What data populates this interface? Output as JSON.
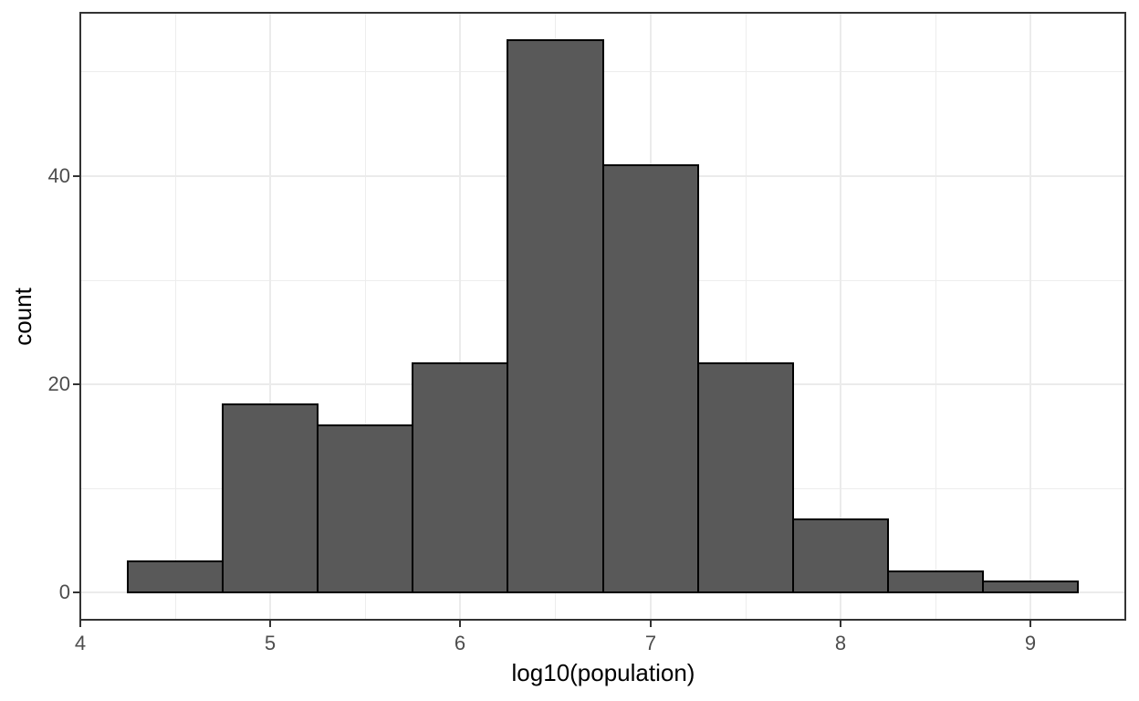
{
  "chart_data": {
    "type": "bar",
    "subtype": "histogram",
    "title": "",
    "xlabel": "log10(population)",
    "ylabel": "count",
    "bin_edges": [
      4.25,
      4.75,
      5.25,
      5.75,
      6.25,
      6.75,
      7.25,
      7.75,
      8.25,
      8.75,
      9.25
    ],
    "counts": [
      3,
      18,
      16,
      22,
      53,
      41,
      22,
      7,
      2,
      1
    ],
    "xlim": [
      4.0,
      9.5
    ],
    "ylim": [
      -2.65,
      55.65
    ],
    "x_ticks": [
      4,
      5,
      6,
      7,
      8,
      9
    ],
    "y_ticks": [
      0,
      20,
      40
    ],
    "x_minor_breaks": [
      4.5,
      5.5,
      6.5,
      7.5,
      8.5,
      9.5
    ],
    "y_minor_breaks": [
      10,
      30,
      50
    ],
    "grid": "on",
    "legend": "none",
    "colors": {
      "bar_fill": "#595959",
      "bar_stroke": "#000000",
      "panel_border": "#333333",
      "grid_major": "#ebebeb",
      "grid_minor": "#ededed",
      "axis_text": "#4d4d4d",
      "axis_title": "#000000",
      "tick_mark": "#333333",
      "background": "#ffffff"
    }
  }
}
